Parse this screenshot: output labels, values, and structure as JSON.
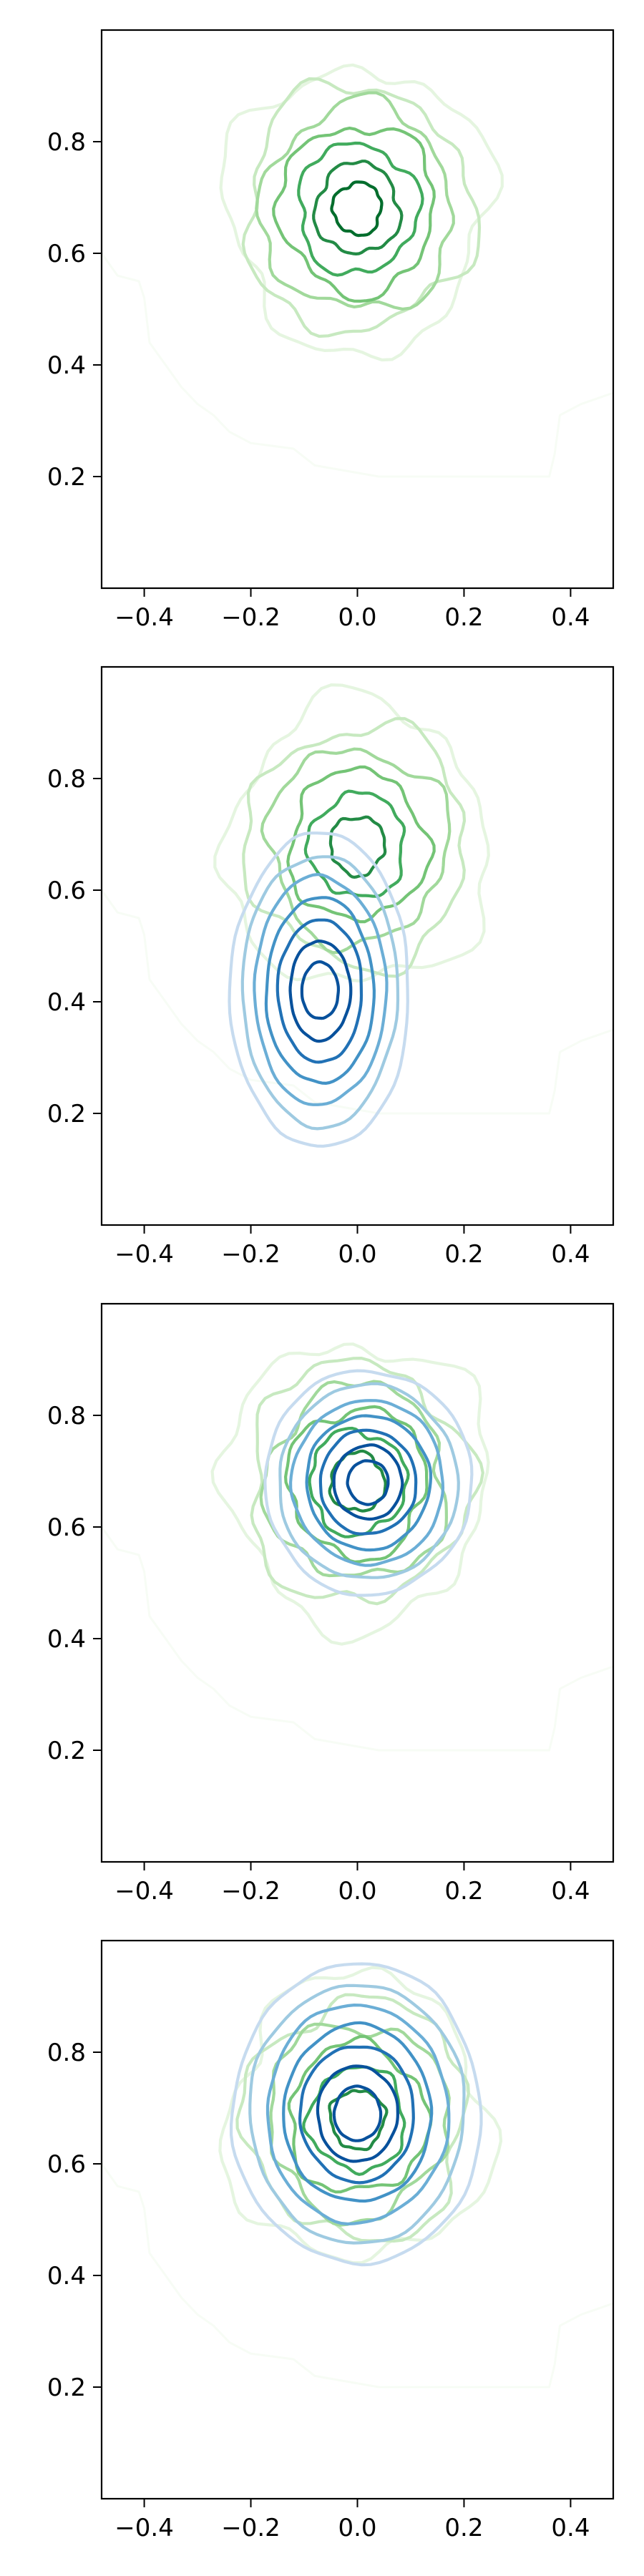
{
  "chart_data": [
    {
      "type": "contour",
      "panel": 1,
      "xlim": [
        -0.48,
        0.48
      ],
      "ylim": [
        0.0,
        1.0
      ],
      "xticks": [
        -0.4,
        -0.2,
        0.0,
        0.2,
        0.4
      ],
      "yticks": [
        0.2,
        0.4,
        0.6,
        0.8
      ],
      "xticklabels": [
        "−0.4",
        "−0.2",
        "0.0",
        "0.2",
        "0.4"
      ],
      "yticklabels": [
        "0.2",
        "0.4",
        "0.6",
        "0.8"
      ],
      "grid": false,
      "series": [
        {
          "colormap": "Greens",
          "colors": [
            "#f7fcf5",
            "#e5f5e0",
            "#c7e9c0",
            "#a1d99b",
            "#74c476",
            "#41ab5d",
            "#238b45",
            "#006d2c"
          ],
          "center": [
            0.0,
            0.68
          ],
          "spread": [
            0.09,
            0.09
          ],
          "levels": 7,
          "has_background_outline": true
        }
      ]
    },
    {
      "type": "contour",
      "panel": 2,
      "xlim": [
        -0.48,
        0.48
      ],
      "ylim": [
        0.0,
        1.0
      ],
      "xticks": [
        -0.4,
        -0.2,
        0.0,
        0.2,
        0.4
      ],
      "yticks": [
        0.2,
        0.4,
        0.6,
        0.8
      ],
      "xticklabels": [
        "−0.4",
        "−0.2",
        "0.0",
        "0.2",
        "0.4"
      ],
      "yticklabels": [
        "0.2",
        "0.4",
        "0.6",
        "0.8"
      ],
      "grid": false,
      "series": [
        {
          "colormap": "Greens",
          "colors": [
            "#f7fcf5",
            "#e5f5e0",
            "#c7e9c0",
            "#a1d99b",
            "#74c476",
            "#41ab5d",
            "#238b45"
          ],
          "center": [
            0.0,
            0.68
          ],
          "spread": [
            0.09,
            0.09
          ],
          "levels": 6,
          "has_background_outline": true
        },
        {
          "colormap": "Blues",
          "colors": [
            "#deebf7",
            "#c6dbef",
            "#9ecae1",
            "#6baed6",
            "#4292c6",
            "#2171b5",
            "#08519c"
          ],
          "center": [
            -0.07,
            0.42
          ],
          "spread": [
            0.06,
            0.1
          ],
          "levels": 7
        }
      ]
    },
    {
      "type": "contour",
      "panel": 3,
      "xlim": [
        -0.48,
        0.48
      ],
      "ylim": [
        0.0,
        1.0
      ],
      "xticks": [
        -0.4,
        -0.2,
        0.0,
        0.2,
        0.4
      ],
      "yticks": [
        0.2,
        0.4,
        0.6,
        0.8
      ],
      "xticklabels": [
        "−0.4",
        "−0.2",
        "0.0",
        "0.2",
        "0.4"
      ],
      "yticklabels": [
        "0.2",
        "0.4",
        "0.6",
        "0.8"
      ],
      "grid": false,
      "series": [
        {
          "colormap": "Greens",
          "colors": [
            "#f7fcf5",
            "#e5f5e0",
            "#c7e9c0",
            "#a1d99b",
            "#74c476",
            "#41ab5d",
            "#238b45"
          ],
          "center": [
            0.0,
            0.68
          ],
          "spread": [
            0.09,
            0.09
          ],
          "levels": 6,
          "has_background_outline": true
        },
        {
          "colormap": "Blues",
          "colors": [
            "#deebf7",
            "#c6dbef",
            "#9ecae1",
            "#6baed6",
            "#4292c6",
            "#2171b5",
            "#08519c"
          ],
          "center": [
            0.02,
            0.68
          ],
          "spread": [
            0.07,
            0.07
          ],
          "levels": 7
        }
      ]
    },
    {
      "type": "contour",
      "panel": 4,
      "xlim": [
        -0.48,
        0.48
      ],
      "ylim": [
        0.0,
        1.0
      ],
      "xticks": [
        -0.4,
        -0.2,
        0.0,
        0.2,
        0.4
      ],
      "yticks": [
        0.2,
        0.4,
        0.6,
        0.8
      ],
      "xticklabels": [
        "−0.4",
        "−0.2",
        "0.0",
        "0.2",
        "0.4"
      ],
      "yticklabels": [
        "0.2",
        "0.4",
        "0.6",
        "0.8"
      ],
      "grid": false,
      "series": [
        {
          "colormap": "Greens",
          "colors": [
            "#f7fcf5",
            "#e5f5e0",
            "#c7e9c0",
            "#a1d99b",
            "#74c476",
            "#41ab5d",
            "#238b45"
          ],
          "center": [
            0.0,
            0.68
          ],
          "spread": [
            0.09,
            0.09
          ],
          "levels": 6,
          "has_background_outline": true
        },
        {
          "colormap": "Blues",
          "colors": [
            "#deebf7",
            "#c6dbef",
            "#9ecae1",
            "#6baed6",
            "#4292c6",
            "#2171b5",
            "#08519c"
          ],
          "center": [
            0.0,
            0.69
          ],
          "spread": [
            0.085,
            0.095
          ],
          "levels": 7
        }
      ]
    }
  ]
}
